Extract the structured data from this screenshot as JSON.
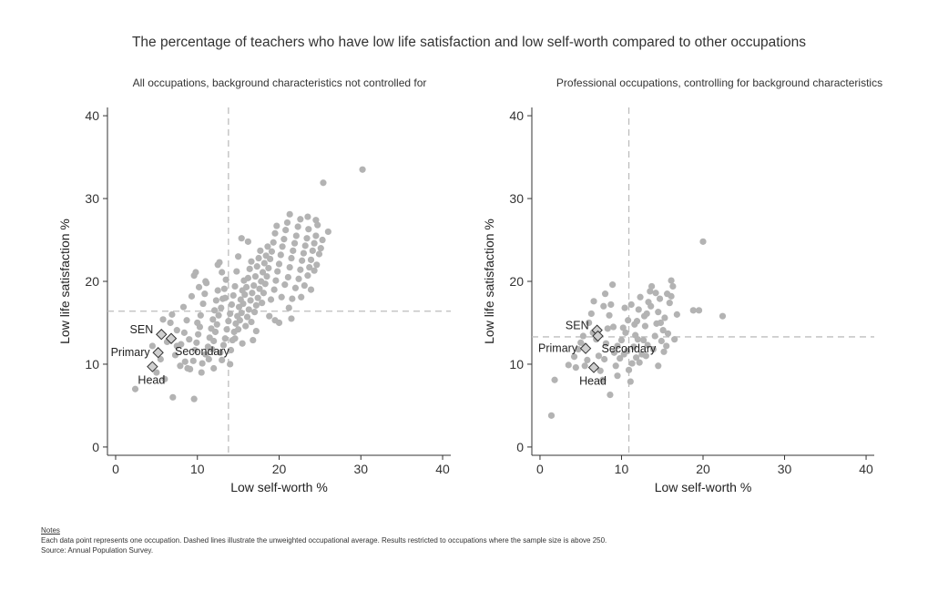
{
  "title": "The percentage of teachers who have low life satisfaction and low self-worth compared to other occupations",
  "notes": {
    "heading": "Notes",
    "line1": "Each data point represents one occupation. Dashed lines illustrate the unweighted occupational average. Results restricted to occupations where the sample size is above 250.",
    "line2": "Source: Annual Population Survey."
  },
  "colors": {
    "points": "#b3b3b3",
    "teacher_fill": "#cfcfcf",
    "teacher_stroke": "#333333",
    "refline": "#bdbdbd",
    "axis": "#333333"
  },
  "chart_data": [
    {
      "type": "scatter",
      "title": "All occupations, background characteristics not controlled for",
      "xlabel": "Low self-worth %",
      "ylabel": "Low life satisfaction %",
      "xlim": [
        -1,
        41
      ],
      "ylim": [
        -1,
        41
      ],
      "xticks": [
        0,
        10,
        20,
        30,
        40
      ],
      "yticks": [
        0,
        10,
        20,
        30,
        40
      ],
      "grid": false,
      "ref_x": 13.8,
      "ref_y": 16.4,
      "teachers": [
        {
          "label": "SEN",
          "x": 5.6,
          "y": 13.6,
          "label_side": "left"
        },
        {
          "label": "Primary",
          "x": 5.2,
          "y": 11.4,
          "label_side": "left"
        },
        {
          "label": "Secondary",
          "x": 6.8,
          "y": 13.1,
          "label_side": "below-right"
        },
        {
          "label": "Head",
          "x": 4.5,
          "y": 9.7,
          "label_side": "below"
        }
      ],
      "points": [
        [
          2.4,
          7.0
        ],
        [
          7.0,
          6.0
        ],
        [
          9.6,
          5.8
        ],
        [
          5.0,
          9.0
        ],
        [
          6.0,
          8.2
        ],
        [
          5.5,
          10.6
        ],
        [
          4.5,
          12.2
        ],
        [
          6.3,
          12.7
        ],
        [
          5.8,
          15.4
        ],
        [
          6.9,
          16.0
        ],
        [
          7.5,
          14.1
        ],
        [
          7.3,
          11.1
        ],
        [
          7.9,
          9.8
        ],
        [
          8.5,
          10.3
        ],
        [
          8.8,
          9.5
        ],
        [
          8.0,
          12.4
        ],
        [
          8.4,
          13.8
        ],
        [
          8.7,
          15.3
        ],
        [
          8.3,
          16.9
        ],
        [
          9.3,
          18.2
        ],
        [
          9.6,
          20.7
        ],
        [
          9.8,
          21.1
        ],
        [
          10.2,
          19.3
        ],
        [
          9.1,
          9.4
        ],
        [
          9.5,
          10.4
        ],
        [
          9.7,
          11.7
        ],
        [
          9.9,
          12.6
        ],
        [
          10.1,
          13.6
        ],
        [
          10.3,
          14.5
        ],
        [
          10.4,
          15.9
        ],
        [
          10.7,
          17.3
        ],
        [
          10.9,
          18.5
        ],
        [
          11.1,
          19.8
        ],
        [
          10.6,
          10.1
        ],
        [
          11.0,
          11.2
        ],
        [
          11.3,
          12.1
        ],
        [
          11.5,
          13.2
        ],
        [
          11.7,
          14.3
        ],
        [
          11.9,
          15.4
        ],
        [
          12.1,
          16.5
        ],
        [
          12.3,
          17.7
        ],
        [
          12.5,
          18.9
        ],
        [
          12.7,
          22.3
        ],
        [
          13.0,
          21.1
        ],
        [
          11.4,
          10.6
        ],
        [
          11.8,
          11.8
        ],
        [
          12.0,
          12.8
        ],
        [
          12.2,
          13.9
        ],
        [
          12.4,
          14.8
        ],
        [
          12.6,
          15.9
        ],
        [
          12.9,
          16.8
        ],
        [
          13.1,
          17.9
        ],
        [
          13.3,
          19.1
        ],
        [
          13.5,
          20.2
        ],
        [
          12.8,
          11.4
        ],
        [
          13.2,
          12.3
        ],
        [
          13.4,
          13.1
        ],
        [
          13.6,
          14.2
        ],
        [
          13.8,
          15.2
        ],
        [
          14.0,
          16.1
        ],
        [
          14.2,
          17.2
        ],
        [
          14.4,
          18.3
        ],
        [
          14.6,
          19.4
        ],
        [
          14.8,
          21.2
        ],
        [
          13.0,
          10.5
        ],
        [
          14.1,
          11.7
        ],
        [
          14.3,
          12.9
        ],
        [
          14.5,
          13.9
        ],
        [
          14.7,
          14.9
        ],
        [
          14.9,
          15.8
        ],
        [
          15.1,
          16.9
        ],
        [
          15.3,
          17.8
        ],
        [
          15.5,
          18.9
        ],
        [
          15.7,
          20.1
        ],
        [
          15.4,
          25.2
        ],
        [
          16.2,
          24.8
        ],
        [
          14.6,
          13.1
        ],
        [
          15.0,
          14.2
        ],
        [
          15.2,
          15.3
        ],
        [
          15.4,
          16.2
        ],
        [
          15.6,
          17.3
        ],
        [
          15.8,
          18.4
        ],
        [
          16.0,
          19.3
        ],
        [
          16.2,
          20.4
        ],
        [
          16.4,
          21.5
        ],
        [
          16.6,
          22.4
        ],
        [
          15.9,
          14.6
        ],
        [
          16.1,
          15.7
        ],
        [
          16.3,
          16.6
        ],
        [
          16.5,
          17.7
        ],
        [
          16.7,
          18.6
        ],
        [
          16.9,
          19.5
        ],
        [
          17.1,
          20.6
        ],
        [
          17.3,
          21.8
        ],
        [
          17.5,
          22.8
        ],
        [
          17.7,
          23.7
        ],
        [
          16.6,
          15.1
        ],
        [
          17.0,
          16.3
        ],
        [
          17.2,
          17.1
        ],
        [
          17.4,
          18.0
        ],
        [
          17.6,
          19.1
        ],
        [
          17.8,
          20.0
        ],
        [
          18.0,
          21.1
        ],
        [
          18.2,
          22.2
        ],
        [
          18.4,
          23.1
        ],
        [
          18.6,
          24.2
        ],
        [
          17.9,
          17.4
        ],
        [
          18.1,
          18.6
        ],
        [
          18.3,
          19.7
        ],
        [
          18.5,
          20.6
        ],
        [
          18.7,
          21.6
        ],
        [
          18.9,
          22.7
        ],
        [
          19.1,
          23.6
        ],
        [
          19.3,
          24.7
        ],
        [
          19.5,
          25.8
        ],
        [
          19.7,
          26.7
        ],
        [
          19.0,
          17.8
        ],
        [
          19.4,
          19.0
        ],
        [
          19.6,
          20.1
        ],
        [
          19.8,
          21.2
        ],
        [
          20.0,
          22.1
        ],
        [
          20.2,
          23.2
        ],
        [
          20.4,
          24.2
        ],
        [
          20.6,
          25.1
        ],
        [
          20.8,
          26.2
        ],
        [
          21.0,
          27.1
        ],
        [
          20.0,
          15.0
        ],
        [
          20.3,
          18.1
        ],
        [
          20.7,
          19.6
        ],
        [
          21.1,
          20.5
        ],
        [
          21.3,
          21.7
        ],
        [
          21.5,
          22.8
        ],
        [
          21.7,
          23.7
        ],
        [
          21.9,
          24.6
        ],
        [
          22.1,
          25.5
        ],
        [
          22.3,
          26.6
        ],
        [
          21.2,
          16.8
        ],
        [
          21.6,
          17.9
        ],
        [
          22.0,
          19.2
        ],
        [
          22.4,
          20.3
        ],
        [
          22.6,
          21.4
        ],
        [
          22.8,
          22.5
        ],
        [
          23.0,
          23.4
        ],
        [
          23.2,
          24.3
        ],
        [
          23.4,
          25.2
        ],
        [
          23.6,
          26.3
        ],
        [
          22.7,
          18.1
        ],
        [
          23.1,
          19.5
        ],
        [
          23.5,
          20.7
        ],
        [
          23.7,
          21.7
        ],
        [
          23.9,
          22.6
        ],
        [
          24.1,
          23.7
        ],
        [
          24.3,
          24.6
        ],
        [
          24.5,
          25.5
        ],
        [
          24.7,
          26.8
        ],
        [
          23.5,
          27.8
        ],
        [
          23.9,
          19.0
        ],
        [
          24.3,
          21.3
        ],
        [
          24.6,
          22.0
        ],
        [
          24.9,
          23.3
        ],
        [
          25.1,
          24.0
        ],
        [
          25.3,
          25.0
        ],
        [
          26.0,
          26.0
        ],
        [
          25.4,
          31.9
        ],
        [
          30.2,
          33.5
        ],
        [
          21.3,
          28.1
        ],
        [
          22.6,
          27.5
        ],
        [
          24.5,
          27.4
        ],
        [
          21.5,
          15.5
        ],
        [
          14.0,
          10.0
        ],
        [
          12.0,
          9.5
        ],
        [
          10.5,
          9.0
        ],
        [
          15.5,
          12.5
        ],
        [
          17.2,
          14.0
        ],
        [
          16.8,
          12.9
        ],
        [
          18.8,
          15.8
        ],
        [
          19.5,
          15.3
        ],
        [
          13.4,
          18.0
        ],
        [
          11.0,
          20.0
        ],
        [
          10.0,
          15.0
        ],
        [
          9.0,
          13.0
        ],
        [
          7.5,
          12.2
        ],
        [
          6.7,
          15.0
        ],
        [
          12.5,
          22.0
        ],
        [
          15.0,
          23.0
        ]
      ]
    },
    {
      "type": "scatter",
      "title": "Professional occupations, controlling for background characteristics",
      "xlabel": "Low self-worth %",
      "ylabel": "Low life satisfaction %",
      "xlim": [
        -1,
        41
      ],
      "ylim": [
        -1,
        41
      ],
      "xticks": [
        0,
        10,
        20,
        30,
        40
      ],
      "yticks": [
        0,
        10,
        20,
        30,
        40
      ],
      "grid": false,
      "ref_x": 10.9,
      "ref_y": 13.3,
      "teachers": [
        {
          "label": "SEN",
          "x": 7.0,
          "y": 14.1,
          "label_side": "left"
        },
        {
          "label": "Primary",
          "x": 5.6,
          "y": 11.9,
          "label_side": "left"
        },
        {
          "label": "Secondary",
          "x": 7.1,
          "y": 13.4,
          "label_side": "below-right"
        },
        {
          "label": "Head",
          "x": 6.6,
          "y": 9.6,
          "label_side": "below"
        }
      ],
      "points": [
        [
          1.4,
          3.8
        ],
        [
          1.8,
          8.1
        ],
        [
          3.5,
          9.9
        ],
        [
          4.2,
          10.9
        ],
        [
          4.4,
          9.6
        ],
        [
          4.7,
          11.8
        ],
        [
          5.0,
          12.6
        ],
        [
          5.3,
          13.4
        ],
        [
          5.5,
          9.8
        ],
        [
          5.8,
          10.5
        ],
        [
          6.0,
          15.0
        ],
        [
          6.3,
          16.1
        ],
        [
          6.6,
          17.6
        ],
        [
          6.9,
          13.0
        ],
        [
          7.2,
          11.0
        ],
        [
          7.4,
          9.2
        ],
        [
          7.7,
          8.1
        ],
        [
          7.9,
          10.6
        ],
        [
          8.1,
          12.5
        ],
        [
          8.3,
          14.3
        ],
        [
          8.5,
          15.9
        ],
        [
          8.7,
          17.2
        ],
        [
          8.9,
          19.6
        ],
        [
          9.1,
          11.4
        ],
        [
          9.3,
          9.8
        ],
        [
          9.5,
          8.6
        ],
        [
          8.6,
          6.3
        ],
        [
          9.8,
          10.7
        ],
        [
          10.0,
          12.9
        ],
        [
          10.2,
          14.4
        ],
        [
          10.4,
          16.8
        ],
        [
          10.7,
          11.6
        ],
        [
          10.9,
          9.3
        ],
        [
          11.1,
          7.9
        ],
        [
          11.3,
          10.1
        ],
        [
          11.5,
          12.1
        ],
        [
          11.7,
          13.5
        ],
        [
          11.9,
          15.2
        ],
        [
          12.1,
          16.6
        ],
        [
          12.3,
          18.1
        ],
        [
          12.5,
          11.2
        ],
        [
          12.7,
          12.9
        ],
        [
          12.9,
          14.6
        ],
        [
          13.1,
          16.1
        ],
        [
          13.3,
          17.5
        ],
        [
          13.5,
          18.8
        ],
        [
          13.7,
          19.4
        ],
        [
          13.9,
          11.8
        ],
        [
          14.1,
          13.4
        ],
        [
          14.3,
          14.9
        ],
        [
          14.5,
          16.3
        ],
        [
          14.7,
          17.9
        ],
        [
          14.9,
          12.8
        ],
        [
          15.1,
          14.1
        ],
        [
          15.3,
          15.6
        ],
        [
          15.5,
          12.2
        ],
        [
          15.7,
          13.7
        ],
        [
          15.9,
          17.4
        ],
        [
          16.1,
          18.2
        ],
        [
          16.3,
          19.4
        ],
        [
          16.1,
          20.1
        ],
        [
          14.5,
          9.8
        ],
        [
          13.0,
          11.0
        ],
        [
          12.0,
          13.0
        ],
        [
          11.8,
          10.8
        ],
        [
          10.5,
          13.8
        ],
        [
          9.5,
          12.2
        ],
        [
          8.0,
          18.5
        ],
        [
          7.8,
          17.0
        ],
        [
          6.5,
          13.8
        ],
        [
          5.5,
          12.2
        ],
        [
          12.8,
          15.8
        ],
        [
          13.6,
          17.0
        ],
        [
          14.2,
          18.6
        ],
        [
          15.2,
          11.5
        ],
        [
          18.8,
          16.5
        ],
        [
          19.5,
          16.5
        ],
        [
          22.4,
          15.8
        ],
        [
          20.0,
          24.8
        ],
        [
          11.2,
          17.2
        ],
        [
          10.3,
          11.2
        ],
        [
          9.0,
          14.5
        ],
        [
          12.2,
          10.2
        ],
        [
          13.2,
          12.3
        ],
        [
          14.8,
          15.0
        ],
        [
          16.5,
          13.0
        ],
        [
          16.8,
          16.0
        ],
        [
          15.6,
          18.5
        ],
        [
          11.6,
          14.8
        ],
        [
          10.8,
          15.3
        ]
      ]
    }
  ]
}
